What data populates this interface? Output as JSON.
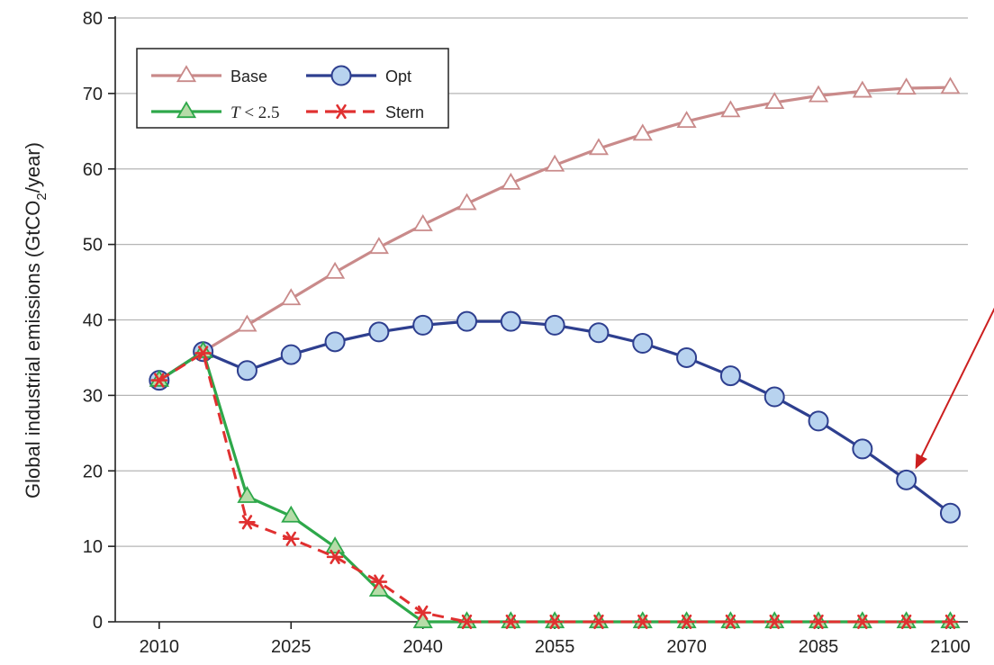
{
  "chart_data": {
    "type": "line",
    "title": "",
    "xlabel": "",
    "ylabel": {
      "prefix": "Global industrial emissions (GtCO",
      "sub": "2",
      "suffix": "/year)"
    },
    "xlim": [
      2005,
      2102
    ],
    "ylim": [
      0,
      80
    ],
    "xticks": [
      2010,
      2025,
      2040,
      2055,
      2070,
      2085,
      2100
    ],
    "yticks": [
      0,
      10,
      20,
      30,
      40,
      50,
      60,
      70,
      80
    ],
    "grid": "horizontal",
    "legend_position": "top-left",
    "series": [
      {
        "name": "Base",
        "color": "#c98a8a",
        "marker": "triangle-open",
        "x": [
          2010,
          2015,
          2020,
          2025,
          2030,
          2035,
          2040,
          2045,
          2050,
          2055,
          2060,
          2065,
          2070,
          2075,
          2080,
          2085,
          2090,
          2095,
          2100
        ],
        "y": [
          32,
          35.8,
          39.3,
          42.8,
          46.3,
          49.6,
          52.6,
          55.4,
          58.1,
          60.5,
          62.7,
          64.6,
          66.3,
          67.7,
          68.8,
          69.7,
          70.3,
          70.7,
          70.8
        ]
      },
      {
        "name": "Opt",
        "color": "#2e3f8f",
        "marker": "circle",
        "marker_fill": "#b8d3ef",
        "x": [
          2010,
          2015,
          2020,
          2025,
          2030,
          2035,
          2040,
          2045,
          2050,
          2055,
          2060,
          2065,
          2070,
          2075,
          2080,
          2085,
          2090,
          2095,
          2100
        ],
        "y": [
          32,
          35.8,
          33.3,
          35.4,
          37.1,
          38.4,
          39.3,
          39.8,
          39.8,
          39.3,
          38.3,
          36.9,
          35.0,
          32.6,
          29.8,
          26.6,
          22.9,
          18.8,
          14.4
        ]
      },
      {
        "name": "T < 2.5",
        "color": "#2ea84a",
        "marker": "triangle",
        "marker_fill": "#b6dca8",
        "x": [
          2010,
          2015,
          2020,
          2025,
          2030,
          2035,
          2040,
          2045,
          2050,
          2055,
          2060,
          2065,
          2070,
          2075,
          2080,
          2085,
          2090,
          2095,
          2100
        ],
        "y": [
          32,
          35.8,
          16.6,
          14.0,
          9.9,
          4.2,
          0,
          0,
          0,
          0,
          0,
          0,
          0,
          0,
          0,
          0,
          0,
          0,
          0
        ]
      },
      {
        "name": "Stern",
        "color": "#e03030",
        "marker": "asterisk",
        "dashed": true,
        "x": [
          2010,
          2015,
          2020,
          2025,
          2030,
          2035,
          2040,
          2045,
          2050,
          2055,
          2060,
          2065,
          2070,
          2075,
          2080,
          2085,
          2090,
          2095,
          2100
        ],
        "y": [
          32,
          35.6,
          13.2,
          11.0,
          8.6,
          5.3,
          1.2,
          0,
          0,
          0,
          0,
          0,
          0,
          0,
          0,
          0,
          0,
          0,
          0
        ]
      }
    ],
    "annotation": {
      "type": "arrow",
      "color": "#cc1f1f",
      "target_series": "Opt",
      "target_x": 2095,
      "target_y": 18.8
    }
  }
}
